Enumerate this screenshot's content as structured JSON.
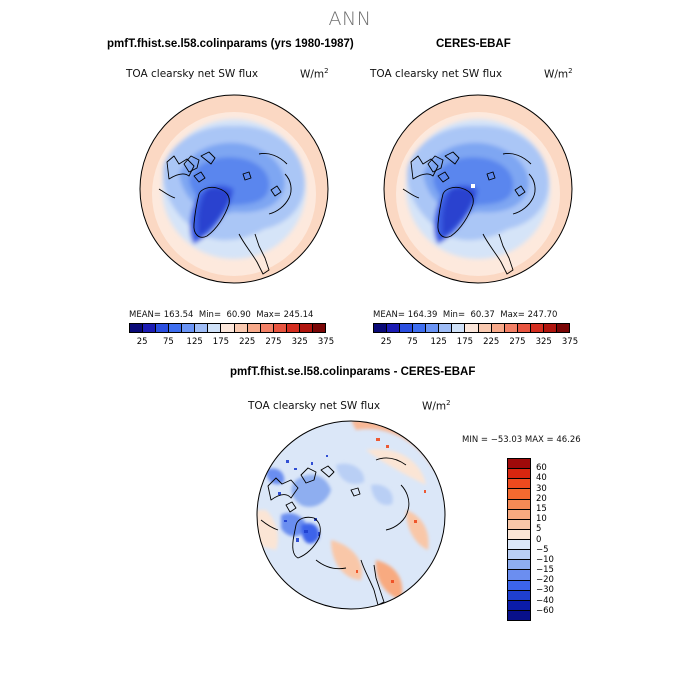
{
  "figure_title": "ANN",
  "panels": {
    "model": {
      "title": "pmfT.fhist.se.l58.colinparams (yrs 1980-1987)",
      "variable": "TOA clearsky net SW flux",
      "units_base": "W/m",
      "units_exp": "2",
      "mean_label": "MEAN=",
      "mean": "163.54",
      "min_label": "Min=",
      "min": "60.90",
      "max_label": "Max=",
      "max": "245.14"
    },
    "obs": {
      "title": "CERES-EBAF",
      "variable": "TOA clearsky net SW flux",
      "units_base": "W/m",
      "units_exp": "2",
      "mean_label": "MEAN=",
      "mean": "164.39",
      "min_label": "Min=",
      "min": "60.37",
      "max_label": "Max=",
      "max": "247.70"
    },
    "diff": {
      "title": "pmfT.fhist.se.l58.colinparams - CERES-EBAF",
      "variable": "TOA clearsky net SW flux",
      "units_base": "W/m",
      "units_exp": "2",
      "range_text": "MIN = −53.03  MAX =  46.26"
    }
  },
  "colorbars": {
    "absolute": {
      "tick_labels": [
        "25",
        "75",
        "125",
        "175",
        "225",
        "275",
        "325",
        "375"
      ],
      "colors": [
        "#0a0a78",
        "#1c1cb4",
        "#2b4fe0",
        "#3f6ff0",
        "#6a94f5",
        "#9ebcf6",
        "#cfe1f8",
        "#fbe6da",
        "#f9c9b0",
        "#f7a98a",
        "#f28066",
        "#e85540",
        "#d42e20",
        "#b0150e",
        "#7a0606"
      ]
    },
    "difference": {
      "tick_labels": [
        "60",
        "40",
        "30",
        "20",
        "15",
        "10",
        "5",
        "0",
        "−5",
        "−10",
        "−15",
        "−20",
        "−30",
        "−40",
        "−60"
      ],
      "colors": [
        "#a00a0a",
        "#d8260f",
        "#ee4a1e",
        "#f4692f",
        "#f68a55",
        "#f8aa80",
        "#f9c7a8",
        "#fbe5d5",
        "#dbe7f8",
        "#b9cff5",
        "#8eaef0",
        "#6b8ef0",
        "#3c64ea",
        "#1f3fd0",
        "#0b1ca8",
        "#08108a"
      ]
    }
  }
}
